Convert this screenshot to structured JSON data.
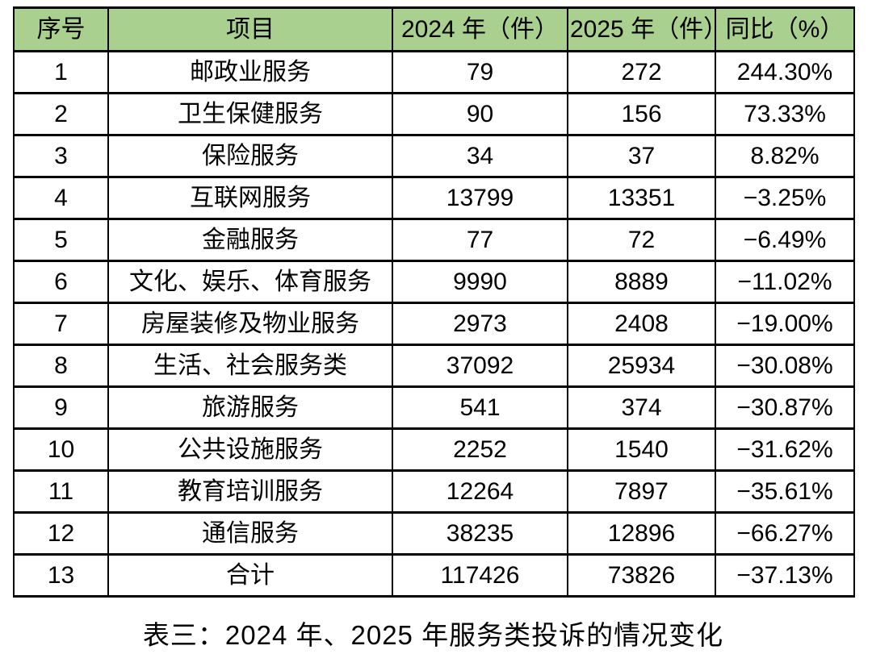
{
  "colors": {
    "header_bg": "#A9D08E",
    "border": "#000000",
    "text": "#000000",
    "page_bg": "#FFFFFF"
  },
  "table": {
    "columns": [
      "序号",
      "项目",
      "2024 年（件）",
      "2025 年（件）",
      "同比（%）"
    ],
    "rows": [
      [
        "1",
        "邮政业服务",
        "79",
        "272",
        "244.30%"
      ],
      [
        "2",
        "卫生保健服务",
        "90",
        "156",
        "73.33%"
      ],
      [
        "3",
        "保险服务",
        "34",
        "37",
        "8.82%"
      ],
      [
        "4",
        "互联网服务",
        "13799",
        "13351",
        "−3.25%"
      ],
      [
        "5",
        "金融服务",
        "77",
        "72",
        "−6.49%"
      ],
      [
        "6",
        "文化、娱乐、体育服务",
        "9990",
        "8889",
        "−11.02%"
      ],
      [
        "7",
        "房屋装修及物业服务",
        "2973",
        "2408",
        "−19.00%"
      ],
      [
        "8",
        "生活、社会服务类",
        "37092",
        "25934",
        "−30.08%"
      ],
      [
        "9",
        "旅游服务",
        "541",
        "374",
        "−30.87%"
      ],
      [
        "10",
        "公共设施服务",
        "2252",
        "1540",
        "−31.62%"
      ],
      [
        "11",
        "教育培训服务",
        "12264",
        "7897",
        "−35.61%"
      ],
      [
        "12",
        "通信服务",
        "38235",
        "12896",
        "−66.27%"
      ],
      [
        "13",
        "合计",
        "117426",
        "73826",
        "−37.13%"
      ]
    ]
  },
  "caption": "表三：2024 年、2025 年服务类投诉的情况变化"
}
